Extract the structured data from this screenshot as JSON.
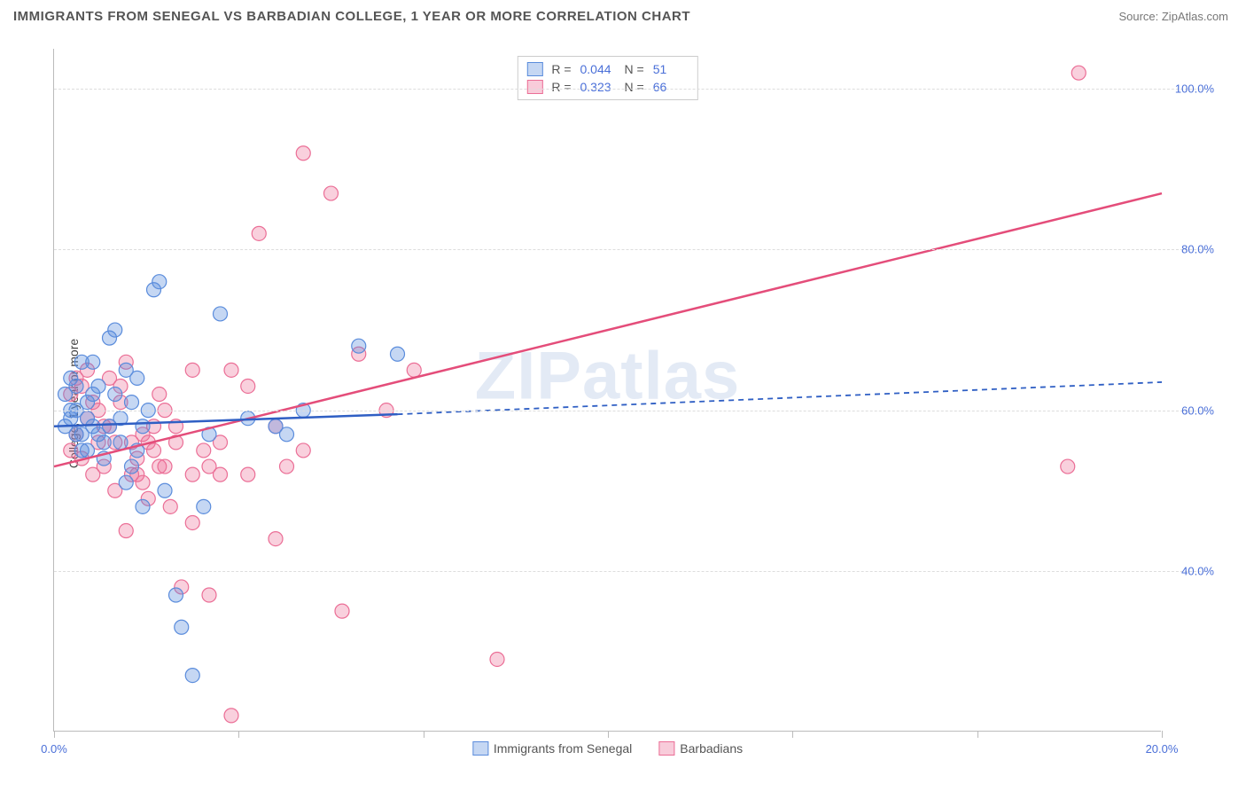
{
  "title": "IMMIGRANTS FROM SENEGAL VS BARBADIAN COLLEGE, 1 YEAR OR MORE CORRELATION CHART",
  "source": "Source: ZipAtlas.com",
  "ylabel": "College, 1 year or more",
  "watermark": "ZIPatlas",
  "chart": {
    "type": "scatter",
    "xlim": [
      0,
      20
    ],
    "ylim": [
      20,
      105
    ],
    "x_ticks": [
      0,
      3.33,
      6.67,
      10,
      13.33,
      16.67,
      20
    ],
    "x_tick_labels": {
      "0": "0.0%",
      "20": "20.0%"
    },
    "y_ticks": [
      40,
      60,
      80,
      100
    ],
    "y_tick_labels": [
      "40.0%",
      "60.0%",
      "80.0%",
      "100.0%"
    ],
    "grid_color": "#dddddd",
    "background_color": "#ffffff",
    "series": {
      "senegal": {
        "label": "Immigrants from Senegal",
        "point_color_fill": "rgba(90,140,220,0.35)",
        "point_color_stroke": "#5a8cdc",
        "line_color": "#2f5fc4",
        "line_dash_extrapolate": "6,5",
        "R": "0.044",
        "N": "51",
        "regression": {
          "x1": 0,
          "y1": 58,
          "x2_solid": 6.2,
          "y2_solid": 59.5,
          "x2": 20,
          "y2": 63.5
        },
        "points": [
          [
            0.2,
            58
          ],
          [
            0.3,
            60
          ],
          [
            0.5,
            66
          ],
          [
            0.6,
            55
          ],
          [
            0.4,
            63
          ],
          [
            0.8,
            57
          ],
          [
            0.7,
            62
          ],
          [
            0.9,
            54
          ],
          [
            1.0,
            69
          ],
          [
            1.1,
            70
          ],
          [
            1.2,
            56
          ],
          [
            1.3,
            65
          ],
          [
            1.4,
            53
          ],
          [
            1.5,
            64
          ],
          [
            1.6,
            48
          ],
          [
            1.7,
            60
          ],
          [
            1.8,
            75
          ],
          [
            1.9,
            76
          ],
          [
            2.0,
            50
          ],
          [
            2.2,
            37
          ],
          [
            2.3,
            33
          ],
          [
            2.5,
            27
          ],
          [
            2.7,
            48
          ],
          [
            2.8,
            57
          ],
          [
            3.0,
            72
          ],
          [
            3.5,
            59
          ],
          [
            4.0,
            58
          ],
          [
            4.2,
            57
          ],
          [
            4.5,
            60
          ],
          [
            5.5,
            68
          ],
          [
            6.2,
            67
          ],
          [
            0.3,
            59
          ],
          [
            0.4,
            57
          ],
          [
            0.5,
            55
          ],
          [
            0.6,
            61
          ],
          [
            0.7,
            58
          ],
          [
            0.8,
            63
          ],
          [
            0.9,
            56
          ],
          [
            1.0,
            58
          ],
          [
            1.1,
            62
          ],
          [
            1.2,
            59
          ],
          [
            1.3,
            51
          ],
          [
            1.4,
            61
          ],
          [
            1.5,
            55
          ],
          [
            1.6,
            58
          ],
          [
            0.2,
            62
          ],
          [
            0.3,
            64
          ],
          [
            0.4,
            60
          ],
          [
            0.5,
            57
          ],
          [
            0.6,
            59
          ],
          [
            0.7,
            66
          ]
        ]
      },
      "barbadians": {
        "label": "Barbadians",
        "point_color_fill": "rgba(235,110,150,0.32)",
        "point_color_stroke": "#eb6e96",
        "line_color": "#e44d7a",
        "R": "0.323",
        "N": "66",
        "regression": {
          "x1": 0,
          "y1": 53,
          "x2": 20,
          "y2": 87
        },
        "points": [
          [
            0.3,
            55
          ],
          [
            0.4,
            57
          ],
          [
            0.5,
            54
          ],
          [
            0.6,
            59
          ],
          [
            0.7,
            52
          ],
          [
            0.8,
            56
          ],
          [
            0.9,
            53
          ],
          [
            1.0,
            58
          ],
          [
            1.1,
            50
          ],
          [
            1.2,
            61
          ],
          [
            1.3,
            45
          ],
          [
            1.4,
            56
          ],
          [
            1.5,
            52
          ],
          [
            1.6,
            57
          ],
          [
            1.7,
            49
          ],
          [
            1.8,
            55
          ],
          [
            1.9,
            53
          ],
          [
            2.0,
            60
          ],
          [
            2.1,
            48
          ],
          [
            2.2,
            58
          ],
          [
            2.3,
            38
          ],
          [
            2.5,
            46
          ],
          [
            2.7,
            55
          ],
          [
            2.8,
            37
          ],
          [
            3.0,
            52
          ],
          [
            3.2,
            65
          ],
          [
            3.5,
            63
          ],
          [
            3.7,
            82
          ],
          [
            4.0,
            44
          ],
          [
            4.2,
            53
          ],
          [
            4.5,
            92
          ],
          [
            5.0,
            87
          ],
          [
            5.2,
            35
          ],
          [
            5.5,
            67
          ],
          [
            6.0,
            60
          ],
          [
            6.5,
            65
          ],
          [
            8.0,
            29
          ],
          [
            3.2,
            22
          ],
          [
            2.5,
            52
          ],
          [
            18.5,
            102
          ],
          [
            18.3,
            53
          ],
          [
            0.3,
            62
          ],
          [
            0.4,
            64
          ],
          [
            0.5,
            63
          ],
          [
            0.6,
            65
          ],
          [
            0.7,
            61
          ],
          [
            0.8,
            60
          ],
          [
            0.9,
            58
          ],
          [
            1.0,
            64
          ],
          [
            1.1,
            56
          ],
          [
            1.2,
            63
          ],
          [
            1.3,
            66
          ],
          [
            1.4,
            52
          ],
          [
            1.5,
            54
          ],
          [
            1.6,
            51
          ],
          [
            1.7,
            56
          ],
          [
            1.8,
            58
          ],
          [
            1.9,
            62
          ],
          [
            2.0,
            53
          ],
          [
            2.2,
            56
          ],
          [
            2.5,
            65
          ],
          [
            2.8,
            53
          ],
          [
            3.0,
            56
          ],
          [
            3.5,
            52
          ],
          [
            4.0,
            58
          ],
          [
            4.5,
            55
          ]
        ]
      }
    }
  }
}
